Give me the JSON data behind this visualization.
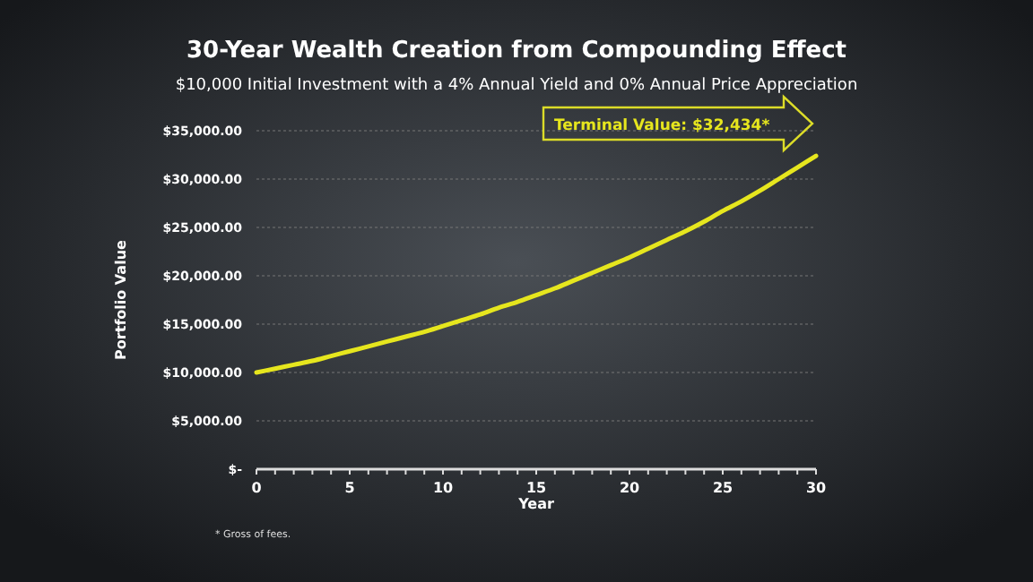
{
  "chart_data": {
    "type": "line",
    "title": "30-Year Wealth Creation from Compounding Effect",
    "subtitle": "$10,000 Initial Investment with a 4% Annual Yield and 0% Annual Price Appreciation",
    "xlabel": "Year",
    "ylabel": "Portfolio Value",
    "x": [
      0,
      1,
      2,
      3,
      4,
      5,
      6,
      7,
      8,
      9,
      10,
      11,
      12,
      13,
      14,
      15,
      16,
      17,
      18,
      19,
      20,
      21,
      22,
      23,
      24,
      25,
      26,
      27,
      28,
      29,
      30
    ],
    "series": [
      {
        "color": "#e6e61e",
        "values": [
          10000,
          10400,
          10800,
          11200,
          11700,
          12200,
          12700,
          13200,
          13700,
          14200,
          14800,
          15400,
          16000,
          16700,
          17300,
          18000,
          18700,
          19500,
          20300,
          21100,
          21900,
          22800,
          23700,
          24600,
          25600,
          26700,
          27700,
          28800,
          30000,
          31200,
          32400
        ]
      }
    ],
    "xlim": [
      0,
      30
    ],
    "xticks": [
      0,
      {
        "value": 1,
        "label": null
      },
      {
        "value": 2,
        "label": null
      },
      {
        "value": 3,
        "label": null
      },
      {
        "value": 4,
        "label": null
      },
      5,
      {
        "value": 6,
        "label": null
      },
      {
        "value": 7,
        "label": null
      },
      {
        "value": 8,
        "label": null
      },
      {
        "value": 9,
        "label": null
      },
      10,
      {
        "value": 11,
        "label": null
      },
      {
        "value": 12,
        "label": null
      },
      {
        "value": 13,
        "label": null
      },
      {
        "value": 14,
        "label": null
      },
      15,
      {
        "value": 16,
        "label": null
      },
      {
        "value": 17,
        "label": null
      },
      {
        "value": 18,
        "label": null
      },
      {
        "value": 19,
        "label": null
      },
      20,
      {
        "value": 21,
        "label": null
      },
      {
        "value": 22,
        "label": null
      },
      {
        "value": 23,
        "label": null
      },
      {
        "value": 24,
        "label": null
      },
      25,
      {
        "value": 26,
        "label": null
      },
      {
        "value": 27,
        "label": null
      },
      {
        "value": 28,
        "label": null
      },
      {
        "value": 29,
        "label": null
      },
      30
    ],
    "ylim": [
      0,
      35000
    ],
    "yticks": [
      {
        "value": 0,
        "label": "$-"
      },
      {
        "value": 5000,
        "label": "$5,000.00"
      },
      {
        "value": 10000,
        "label": "$10,000.00"
      },
      {
        "value": 15000,
        "label": "$15,000.00"
      },
      {
        "value": 20000,
        "label": "$20,000.00"
      },
      {
        "value": 25000,
        "label": "$25,000.00"
      },
      {
        "value": 30000,
        "label": "$30,000.00"
      },
      {
        "value": 35000,
        "label": "$35,000.00"
      }
    ],
    "grid": "y",
    "marker": "none",
    "line_style": "solid",
    "annotations": [
      "Terminal Value: $32,434*",
      "* Gross of fees."
    ]
  }
}
